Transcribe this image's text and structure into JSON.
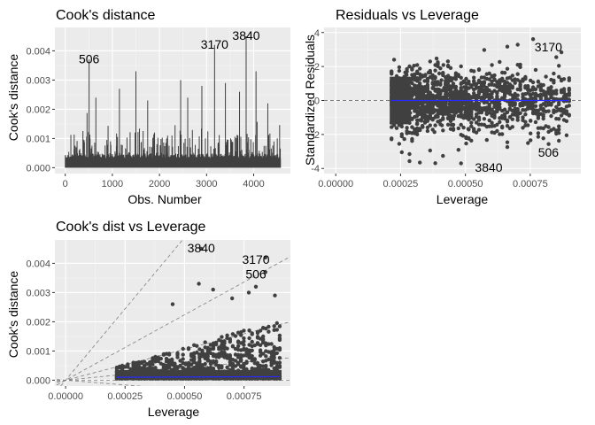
{
  "colors": {
    "panel_background": "#ebebeb",
    "grid_major": "#ffffff",
    "grid_minor": "#f5f5f5",
    "points": "#404040",
    "smooth_line": "#2a2aff",
    "reference_line": "#7f7f7f"
  },
  "chart_data": [
    {
      "type": "bar",
      "title": "Cook's distance",
      "xlabel": "Obs. Number",
      "ylabel": "Cook's distance",
      "xlim": [
        -220,
        4780
      ],
      "ylim": [
        -0.0002,
        0.0048
      ],
      "xticks": [
        0,
        1000,
        2000,
        3000,
        4000
      ],
      "xtick_labels": [
        "0",
        "1000",
        "2000",
        "3000",
        "4000"
      ],
      "yticks": [
        0,
        0.001,
        0.002,
        0.003,
        0.004
      ],
      "ytick_labels": [
        "0.000",
        "0.001",
        "0.002",
        "0.003",
        "0.004"
      ],
      "grid": true,
      "n_obs": 4570,
      "spikes": [
        {
          "x": 506,
          "y": 0.0037
        },
        {
          "x": 3170,
          "y": 0.0042
        },
        {
          "x": 3840,
          "y": 0.0045
        },
        {
          "x": 1500,
          "y": 0.0033
        },
        {
          "x": 4050,
          "y": 0.0033
        },
        {
          "x": 2450,
          "y": 0.003
        },
        {
          "x": 3400,
          "y": 0.0029
        },
        {
          "x": 1150,
          "y": 0.0027
        },
        {
          "x": 2900,
          "y": 0.0028
        },
        {
          "x": 3700,
          "y": 0.0026
        },
        {
          "x": 650,
          "y": 0.0024
        },
        {
          "x": 2600,
          "y": 0.0024
        },
        {
          "x": 4300,
          "y": 0.0022
        },
        {
          "x": 1750,
          "y": 0.0023
        }
      ],
      "point_labels": [
        {
          "text": "506",
          "x": 506,
          "y": 0.0037
        },
        {
          "text": "3170",
          "x": 3170,
          "y": 0.0042
        },
        {
          "text": "3840",
          "x": 3840,
          "y": 0.0045
        }
      ]
    },
    {
      "type": "scatter",
      "title": "Residuals vs Leverage",
      "xlabel": "Leverage",
      "ylabel": "Standardized Residuals",
      "xlim": [
        -4.5e-05,
        0.000945
      ],
      "ylim": [
        -4.3,
        4.3
      ],
      "xticks": [
        0,
        0.00025,
        0.0005,
        0.00075
      ],
      "xtick_labels": [
        "0.00000",
        "0.00025",
        "0.00050",
        "0.00075"
      ],
      "yticks": [
        -4,
        -2,
        0,
        2,
        4
      ],
      "ytick_labels": [
        "-4",
        "-2",
        "0",
        "2",
        "4"
      ],
      "grid": true,
      "leverage_range": [
        0.000215,
        0.0009
      ],
      "residual_range": [
        -3.8,
        3.8
      ],
      "reference_line_y": 0,
      "point_labels": [
        {
          "text": "3170",
          "x": 0.00082,
          "y": 3.1
        },
        {
          "text": "506",
          "x": 0.00082,
          "y": -3.1
        },
        {
          "text": "3840",
          "x": 0.00059,
          "y": -4.0
        }
      ]
    },
    {
      "type": "scatter",
      "title": "Cook's dist vs Leverage",
      "xlabel": "Leverage",
      "ylabel": "Cook's distance",
      "xlim": [
        -4.5e-05,
        0.000945
      ],
      "ylim": [
        -0.0002,
        0.0048
      ],
      "xticks": [
        0,
        0.00025,
        0.0005,
        0.00075
      ],
      "xtick_labels": [
        "0.00000",
        "0.00025",
        "0.00050",
        "0.00075"
      ],
      "yticks": [
        0,
        0.001,
        0.002,
        0.003,
        0.004
      ],
      "ytick_labels": [
        "0.000",
        "0.001",
        "0.002",
        "0.003",
        "0.004"
      ],
      "grid": true,
      "leverage_range": [
        0.000215,
        0.0009
      ],
      "outliers": [
        {
          "x": 0.00057,
          "y": 0.0045
        },
        {
          "x": 0.00084,
          "y": 0.0042
        },
        {
          "x": 0.00084,
          "y": 0.0037
        },
        {
          "x": 0.00056,
          "y": 0.0033
        },
        {
          "x": 0.00062,
          "y": 0.0031
        },
        {
          "x": 0.00077,
          "y": 0.003
        },
        {
          "x": 0.00045,
          "y": 0.0026
        },
        {
          "x": 0.0007,
          "y": 0.0028
        },
        {
          "x": 0.00088,
          "y": 0.0029
        },
        {
          "x": 0.0008,
          "y": 0.0032
        }
      ],
      "point_labels": [
        {
          "text": "3840",
          "x": 0.00057,
          "y": 0.0045
        },
        {
          "text": "3170",
          "x": 0.0008,
          "y": 0.0041
        },
        {
          "text": "506",
          "x": 0.0008,
          "y": 0.0036
        }
      ]
    }
  ]
}
